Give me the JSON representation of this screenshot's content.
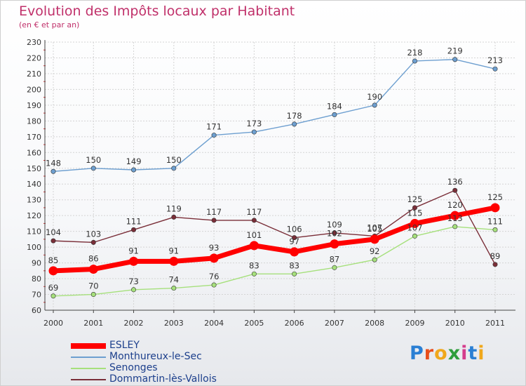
{
  "page": {
    "title": "Evolution des Impôts locaux par Habitant",
    "subtitle": "(en € et par an)"
  },
  "logo": {
    "text": "Proxiti",
    "colors": [
      "#2a7fd4",
      "#e84e1b",
      "#f0a81c",
      "#2e9e3c",
      "#d43c8c",
      "#2a7fd4",
      "#f0a81c"
    ]
  },
  "chart_data": {
    "type": "line",
    "title": "Evolution des Impôts locaux par Habitant",
    "subtitle": "(en € et par an)",
    "xlabel": "",
    "ylabel": "",
    "x": [
      "2000",
      "2001",
      "2002",
      "2003",
      "2004",
      "2005",
      "2006",
      "2007",
      "2008",
      "2009",
      "2010",
      "2011"
    ],
    "ylim": [
      60,
      230
    ],
    "ytick_step": 10,
    "grid": true,
    "legend_position": "bottom-left",
    "series": [
      {
        "name": "ESLEY",
        "color": "#ff0000",
        "bold": true,
        "values": [
          85,
          86,
          91,
          91,
          93,
          101,
          97,
          102,
          105,
          115,
          120,
          125
        ]
      },
      {
        "name": "Monthureux-le-Sec",
        "color": "#6d9fd0",
        "values": [
          148,
          150,
          149,
          150,
          171,
          173,
          178,
          184,
          190,
          218,
          219,
          213
        ]
      },
      {
        "name": "Senonges",
        "color": "#a6e07c",
        "values": [
          69,
          70,
          73,
          74,
          76,
          83,
          83,
          87,
          92,
          107,
          113,
          111
        ]
      },
      {
        "name": "Dommartin-lès-Vallois",
        "color": "#7a2e38",
        "values": [
          104,
          103,
          111,
          119,
          117,
          117,
          106,
          109,
          107,
          125,
          136,
          89
        ]
      }
    ]
  }
}
